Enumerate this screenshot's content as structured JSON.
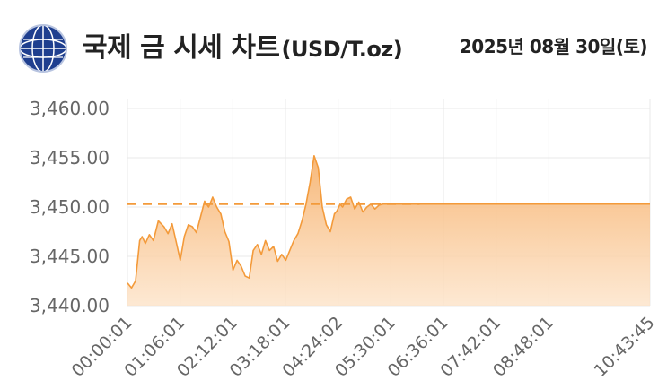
{
  "header": {
    "title": "국제 금 시세 차트",
    "unit": "(USD/T.oz)",
    "date": "2025년 08월 30일(토)",
    "logo_icon": "globe-emblem-icon"
  },
  "colors": {
    "line": "#f39a3a",
    "fill_top": "#f6b06a",
    "fill_bottom": "#fde3c8",
    "grid": "#e8e8e8",
    "axis_text": "#666666"
  },
  "chart_data": {
    "type": "area",
    "y_ticks": [
      "3,460.00",
      "3,455.00",
      "3,450.00",
      "3,445.00",
      "3,440.00"
    ],
    "y_tick_values": [
      3460,
      3455,
      3450,
      3445,
      3440
    ],
    "ylim": [
      3440,
      3461
    ],
    "x_ticks": [
      "00:00:01",
      "01:06:01",
      "02:12:01",
      "03:18:01",
      "04:24:02",
      "05:30:01",
      "06:36:01",
      "07:42:01",
      "08:48:01",
      "10:43:45"
    ],
    "xlabel": "",
    "ylabel": "",
    "grid": true,
    "reference_line": {
      "value": 3450.3,
      "style": "dashed"
    },
    "x_minutes": [
      0,
      5,
      10,
      15,
      18,
      22,
      27,
      32,
      38,
      45,
      50,
      55,
      60,
      65,
      70,
      75,
      80,
      85,
      90,
      95,
      100,
      105,
      110,
      115,
      120,
      125,
      130,
      135,
      140,
      145,
      150,
      155,
      160,
      165,
      170,
      175,
      180,
      185,
      190,
      195,
      200,
      205,
      210,
      215,
      220,
      225,
      230,
      235,
      240,
      245,
      250,
      255,
      258,
      262,
      265,
      270,
      275,
      280,
      285,
      290,
      295,
      300,
      305,
      310,
      315,
      320,
      325,
      330,
      335,
      340,
      345,
      350,
      355,
      360,
      643.75
    ],
    "y_values": [
      3442.3,
      3441.8,
      3442.5,
      3446.6,
      3447.0,
      3446.3,
      3447.2,
      3446.6,
      3448.6,
      3448.0,
      3447.3,
      3448.3,
      3446.5,
      3444.6,
      3447.0,
      3448.2,
      3448.0,
      3447.4,
      3449.0,
      3450.6,
      3450.0,
      3451.0,
      3450.0,
      3449.3,
      3447.5,
      3446.5,
      3443.6,
      3444.6,
      3444.0,
      3443.0,
      3442.8,
      3445.6,
      3446.2,
      3445.2,
      3446.6,
      3445.6,
      3446.0,
      3444.5,
      3445.2,
      3444.6,
      3445.6,
      3446.6,
      3447.3,
      3448.6,
      3450.3,
      3452.5,
      3455.2,
      3454.0,
      3450.0,
      3448.2,
      3447.5,
      3449.3,
      3449.6,
      3450.3,
      3450.0,
      3450.8,
      3451.0,
      3449.8,
      3450.5,
      3449.5,
      3450.0,
      3450.3,
      3449.8,
      3450.2,
      3450.3,
      3450.3,
      3450.3,
      3450.3,
      3450.3,
      3450.3,
      3450.3,
      3450.3,
      3450.3,
      3450.3,
      3450.3
    ]
  }
}
